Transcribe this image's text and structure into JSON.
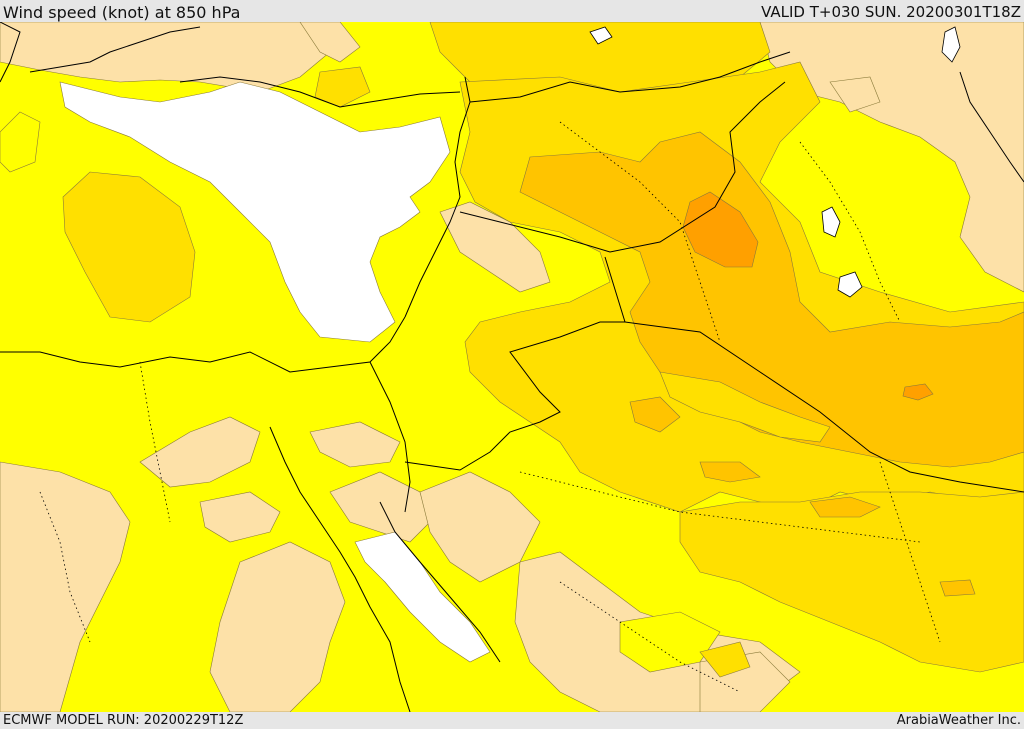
{
  "header": {
    "title": "Wind speed (knot) at 850 hPa",
    "valid": "VALID T+030 SUN. 20200301T18Z"
  },
  "footer": {
    "model_run": "ECMWF MODEL RUN: 20200229T12Z",
    "credit": "ArabiaWeather Inc."
  },
  "colors": {
    "calm": "#ffffff",
    "light": "#fde1a8",
    "moderate": "#ffff00",
    "fresh": "#ffe000",
    "strong": "#ffc400",
    "very_strong": "#ffa000",
    "border": "#000000"
  }
}
